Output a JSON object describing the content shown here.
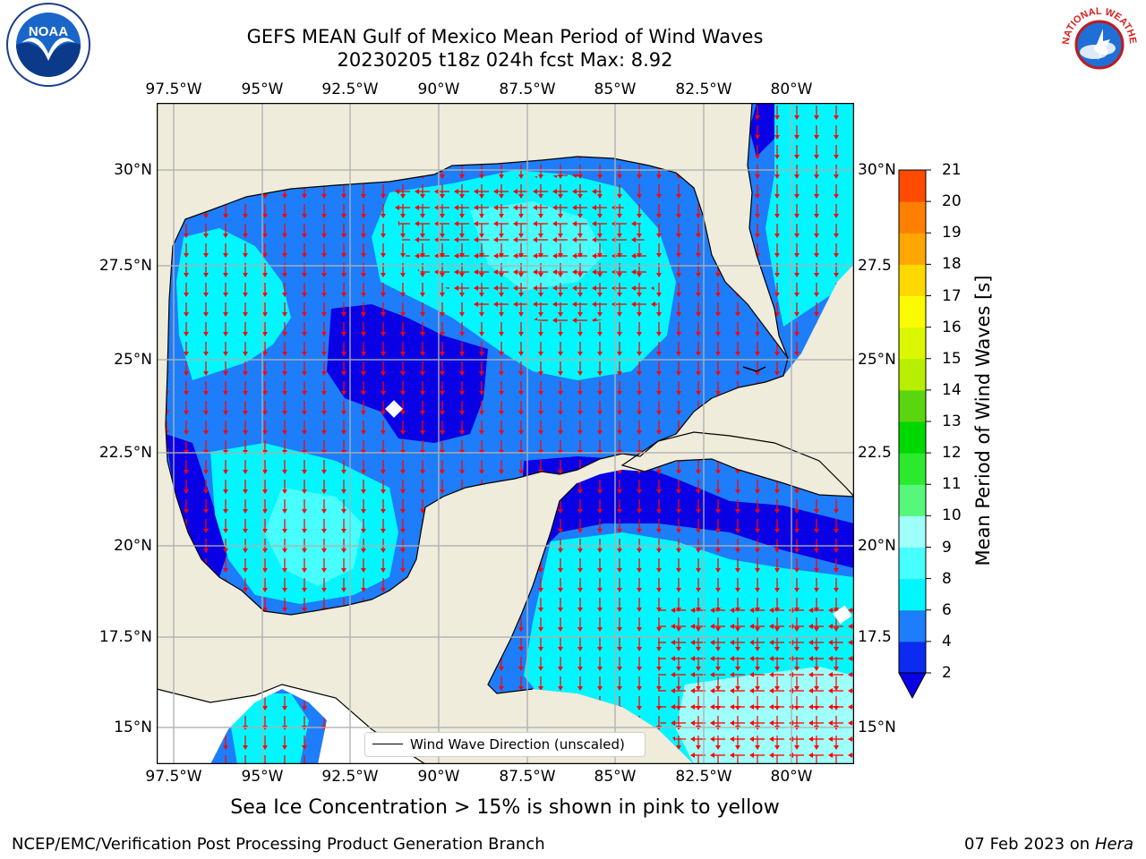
{
  "title_line1": "GEFS MEAN Gulf of Mexico Mean Period of Wind Waves",
  "title_line2": "20230205 t18z 024h fcst   Max: 8.92",
  "lon_ticks": [
    "97.5°W",
    "95°W",
    "92.5°W",
    "90°W",
    "87.5°W",
    "85°W",
    "82.5°W",
    "80°W"
  ],
  "lat_ticks_left": [
    "30°N",
    "27.5°N",
    "25°N",
    "22.5°N",
    "20°N",
    "17.5°N",
    "15°N"
  ],
  "lat_ticks_right": [
    "30°N",
    "27.5",
    "25°N",
    "22.5",
    "20°N",
    "17.5",
    "15°N"
  ],
  "colorbar": {
    "label": "Mean Period of Wind Waves [s]",
    "ticks": [
      "2",
      "4",
      "6",
      "8",
      "9",
      "10",
      "11",
      "12",
      "13",
      "14",
      "15",
      "16",
      "17",
      "18",
      "19",
      "20",
      "21"
    ],
    "colors": [
      "#0b2cf0",
      "#1e7dfa",
      "#00f7ff",
      "#47ffff",
      "#9ffffa",
      "#56f77a",
      "#2bea2e",
      "#00d800",
      "#5ad50f",
      "#b8ef00",
      "#dbf700",
      "#fbfb00",
      "#ffd800",
      "#ffa600",
      "#ff7f00",
      "#ff4b00",
      "#ff2a00",
      "#ff0000"
    ],
    "under_color": "#0a00e6"
  },
  "legend_label": "Wind Wave Direction (unscaled)",
  "ice_note": "Sea Ice Concentration > 15% is shown in pink to yellow",
  "footer_left": "NCEP/EMC/Verification Post Processing Product Generation Branch",
  "footer_right_date": "07 Feb 2023 on",
  "footer_right_host": "Hera",
  "logos": {
    "left": "NOAA",
    "right_text": "NATIONAL WEATHER SERVICE"
  },
  "colors": {
    "land": "#efecdb",
    "arrow": "#ff0000",
    "grid": "#b0b0b0"
  }
}
